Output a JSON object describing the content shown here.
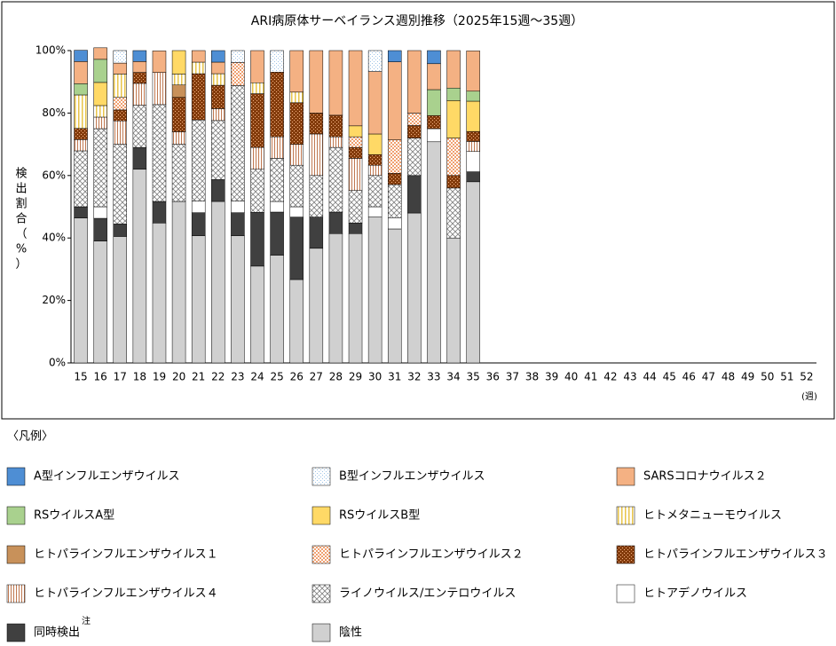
{
  "chart_data": {
    "type": "stacked-bar",
    "title": "ARI病原体サーベイランス週別推移（2025年15週～35週）",
    "y_label": "検出割合（%）",
    "x_unit": "(週)",
    "legend_title": "〈凡例〉",
    "legend_note": "注",
    "categories": [
      "15",
      "16",
      "17",
      "18",
      "19",
      "20",
      "21",
      "22",
      "23",
      "24",
      "25",
      "26",
      "27",
      "28",
      "29",
      "30",
      "31",
      "32",
      "33",
      "34",
      "35",
      "36",
      "37",
      "38",
      "39",
      "40",
      "41",
      "42",
      "43",
      "44",
      "45",
      "46",
      "47",
      "48",
      "49",
      "50",
      "51",
      "52"
    ],
    "ylim": [
      0,
      100
    ],
    "yticks": [
      {
        "value": 0,
        "label": "0%"
      },
      {
        "value": 20,
        "label": "20%"
      },
      {
        "value": 40,
        "label": "40%"
      },
      {
        "value": 60,
        "label": "60%"
      },
      {
        "value": 80,
        "label": "80%"
      },
      {
        "value": 100,
        "label": "100%"
      }
    ],
    "grid": false,
    "series": [
      {
        "name": "A型インフルエンザウイルス",
        "color": "#4e8ed4",
        "values": [
          3.6,
          0,
          0,
          3.5,
          0,
          0,
          0,
          3.7,
          0,
          0,
          0,
          0,
          0,
          0,
          0,
          0,
          3.6,
          0,
          4.2,
          0,
          0,
          null,
          null,
          null,
          null,
          null,
          null,
          null,
          null,
          null,
          null,
          null,
          null,
          null,
          null,
          null,
          null,
          null
        ]
      },
      {
        "name": "B型インフルエンザウイルス",
        "color": "#9dc3e6",
        "pattern": "dots",
        "values": [
          0,
          0,
          4,
          0,
          0,
          0,
          0,
          0,
          3.8,
          0,
          6.9,
          0,
          0,
          0,
          0,
          6.7,
          0,
          0,
          0,
          0,
          0,
          null,
          null,
          null,
          null,
          null,
          null,
          null,
          null,
          null,
          null,
          null,
          null,
          null,
          null,
          null,
          null,
          null
        ]
      },
      {
        "name": "SARSコロナウイルス２",
        "color": "#f4b183",
        "values": [
          7.1,
          3.7,
          3.5,
          3.5,
          6.9,
          0,
          3.7,
          3.7,
          0,
          10.3,
          0,
          13.3,
          20,
          20.7,
          24.1,
          20,
          25,
          20,
          8.3,
          12,
          12.9,
          null,
          null,
          null,
          null,
          null,
          null,
          null,
          null,
          null,
          null,
          null,
          null,
          null,
          null,
          null,
          null,
          null
        ]
      },
      {
        "name": "RSウイルスA型",
        "color": "#a9d18e",
        "values": [
          3.6,
          7.4,
          0,
          0,
          0,
          0,
          0,
          0,
          0,
          0,
          0,
          0,
          0,
          0,
          0,
          0,
          0,
          0,
          8.3,
          4,
          3.2,
          null,
          null,
          null,
          null,
          null,
          null,
          null,
          null,
          null,
          null,
          null,
          null,
          null,
          null,
          null,
          null,
          null
        ]
      },
      {
        "name": "RSウイルスB型",
        "color": "#ffd966",
        "values": [
          0,
          7.4,
          0,
          0,
          0,
          7.5,
          0,
          0,
          0,
          0,
          0,
          0,
          0,
          0,
          3.5,
          6.6,
          0,
          0,
          0,
          12,
          9.7,
          null,
          null,
          null,
          null,
          null,
          null,
          null,
          null,
          null,
          null,
          null,
          null,
          null,
          null,
          null,
          null,
          null
        ]
      },
      {
        "name": "ヒトメタニューモウイルス",
        "color": "#e8c44a",
        "pattern": "stripes",
        "values": [
          10.7,
          3.7,
          7.5,
          0,
          0,
          3.5,
          3.7,
          3.7,
          0,
          3.5,
          0,
          3.4,
          0,
          0,
          0,
          0,
          0,
          0,
          0,
          0,
          0,
          null,
          null,
          null,
          null,
          null,
          null,
          null,
          null,
          null,
          null,
          null,
          null,
          null,
          null,
          null,
          null,
          null
        ]
      },
      {
        "name": "ヒトパラインフルエンザウイルス１",
        "color": "#c8915a",
        "values": [
          0,
          0,
          0,
          0,
          0,
          4,
          0,
          0,
          0,
          0,
          0,
          0,
          0,
          0,
          0,
          0,
          0,
          0,
          0,
          0,
          0,
          null,
          null,
          null,
          null,
          null,
          null,
          null,
          null,
          null,
          null,
          null,
          null,
          null,
          null,
          null,
          null,
          null
        ]
      },
      {
        "name": "ヒトパラインフルエンザウイルス２",
        "color": "#f0a070",
        "pattern": "checker",
        "values": [
          0,
          0,
          4,
          0,
          0,
          0,
          0,
          0,
          7.4,
          0,
          0,
          0,
          0,
          0,
          3.4,
          0,
          10.7,
          4,
          0,
          12,
          0,
          null,
          null,
          null,
          null,
          null,
          null,
          null,
          null,
          null,
          null,
          null,
          null,
          null,
          null,
          null,
          null,
          null
        ]
      },
      {
        "name": "ヒトパラインフルエンザウイルス３",
        "color": "#843c0c",
        "pattern": "dots-on",
        "values": [
          3.6,
          0,
          3.5,
          3.5,
          0,
          11,
          14.8,
          7.5,
          0,
          17.2,
          20.7,
          13.3,
          6.7,
          6.9,
          3.5,
          3.4,
          3.6,
          4,
          4.2,
          4,
          3.2,
          null,
          null,
          null,
          null,
          null,
          null,
          null,
          null,
          null,
          null,
          null,
          null,
          null,
          null,
          null,
          null,
          null
        ]
      },
      {
        "name": "ヒトパラインフルエンザウイルス４",
        "color": "#c07850",
        "pattern": "lines",
        "values": [
          3.6,
          3.7,
          7.5,
          7,
          10.3,
          4,
          0,
          3.8,
          0,
          7,
          6.9,
          6.7,
          13.3,
          3.4,
          10.3,
          3.3,
          0,
          0,
          0,
          0,
          3.2,
          null,
          null,
          null,
          null,
          null,
          null,
          null,
          null,
          null,
          null,
          null,
          null,
          null,
          null,
          null,
          null,
          null
        ]
      },
      {
        "name": "ライノウイルス/エンテロウイルス",
        "color": "#808080",
        "pattern": "crosshatch",
        "values": [
          17.9,
          25,
          25.5,
          13.5,
          31,
          18.3,
          26,
          18.9,
          37,
          13.8,
          13.8,
          13.3,
          13.3,
          20.7,
          10.4,
          10,
          10.6,
          12,
          0,
          16,
          0,
          null,
          null,
          null,
          null,
          null,
          null,
          null,
          null,
          null,
          null,
          null,
          null,
          null,
          null,
          null,
          null,
          null
        ]
      },
      {
        "name": "ヒトアデノウイルス",
        "color": "#ffffff",
        "values": [
          0,
          3.7,
          0,
          0,
          0,
          0,
          3.7,
          0,
          3.7,
          0,
          3.4,
          3.3,
          0,
          0,
          0,
          3.3,
          3.6,
          0,
          4.2,
          0,
          6.5,
          null,
          null,
          null,
          null,
          null,
          null,
          null,
          null,
          null,
          null,
          null,
          null,
          null,
          null,
          null,
          null,
          null
        ]
      },
      {
        "name": "同時検出",
        "color": "#404040",
        "values": [
          3.6,
          7.3,
          4,
          7,
          6.9,
          0,
          7.4,
          7,
          7.4,
          17.2,
          13.8,
          20,
          10,
          6.9,
          3.4,
          0,
          0,
          12,
          0,
          0,
          3.2,
          null,
          null,
          null,
          null,
          null,
          null,
          null,
          null,
          null,
          null,
          null,
          null,
          null,
          null,
          null,
          null,
          null
        ]
      },
      {
        "name": "陰性",
        "color": "#d0d0d0",
        "values": [
          46.4,
          39,
          40.5,
          62,
          44.8,
          51.7,
          40.7,
          51.7,
          40.7,
          31,
          34.5,
          26.7,
          36.7,
          41.4,
          41.4,
          46.7,
          42.9,
          48,
          70.8,
          40,
          58,
          null,
          null,
          null,
          null,
          null,
          null,
          null,
          null,
          null,
          null,
          null,
          null,
          null,
          null,
          null,
          null,
          null
        ]
      }
    ]
  }
}
